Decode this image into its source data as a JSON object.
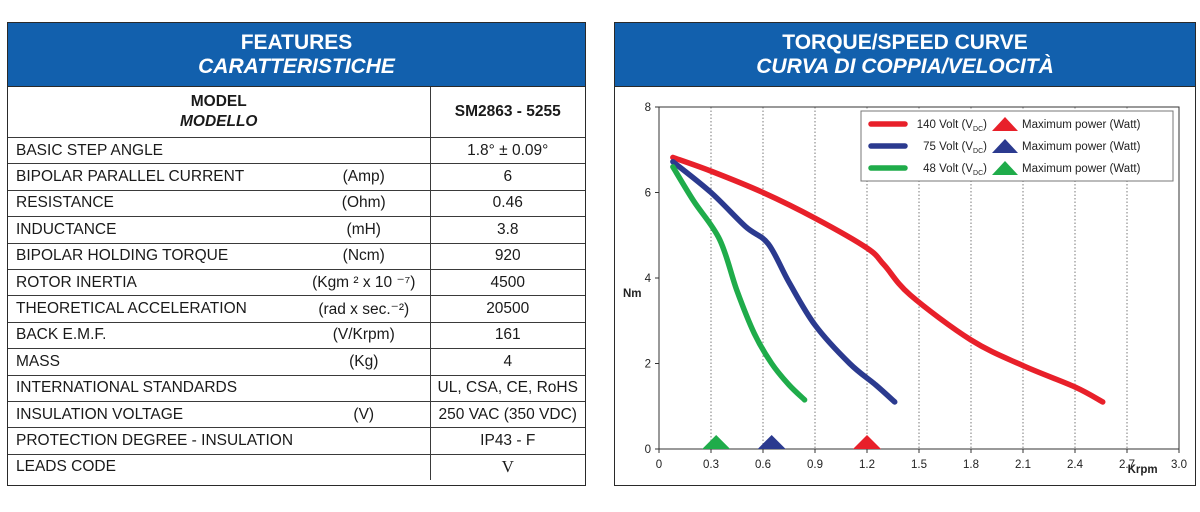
{
  "features": {
    "title": "FEATURES",
    "subtitle": "CARATTERISTICHE",
    "model_label": "MODEL",
    "model_label_it": "MODELLO",
    "model_value": "SM2863 - 5255",
    "rows": [
      {
        "label": "BASIC STEP ANGLE",
        "unit": "",
        "value": "1.8° ± 0.09°"
      },
      {
        "label": "BIPOLAR PARALLEL CURRENT",
        "unit": "(Amp)",
        "value": "6"
      },
      {
        "label": "RESISTANCE",
        "unit": "(Ohm)",
        "value": "0.46"
      },
      {
        "label": "INDUCTANCE",
        "unit": "(mH)",
        "value": "3.8"
      },
      {
        "label": "BIPOLAR HOLDING TORQUE",
        "unit": "(Ncm)",
        "value": "920"
      },
      {
        "label": "ROTOR INERTIA",
        "unit": "(Kgm ² x 10 ⁻⁷)",
        "value": "4500"
      },
      {
        "label": "THEORETICAL ACCELERATION",
        "unit": "(rad x sec.⁻²)",
        "value": "20500"
      },
      {
        "label": "BACK E.M.F.",
        "unit": "(V/Krpm)",
        "value": "161"
      },
      {
        "label": "MASS",
        "unit": "(Kg)",
        "value": "4"
      },
      {
        "label": "INTERNATIONAL STANDARDS",
        "unit": "",
        "value": "UL, CSA, CE, RoHS"
      },
      {
        "label": "INSULATION VOLTAGE",
        "unit": "(V)",
        "value": "250 VAC (350 VDC)"
      },
      {
        "label": "PROTECTION DEGREE - INSULATION CLASS",
        "unit": "",
        "value": "IP43 - F"
      },
      {
        "label": "LEADS CODE",
        "unit": "",
        "value": "V"
      }
    ]
  },
  "curve_panel": {
    "title": "TORQUE/SPEED CURVE",
    "subtitle": "CURVA DI COPPIA/VELOCITÀ"
  },
  "chart_data": {
    "type": "line",
    "title": "TORQUE/SPEED CURVE",
    "xlabel": "Krpm",
    "ylabel": "Nm",
    "xlim": [
      0,
      3.0
    ],
    "ylim": [
      0,
      8
    ],
    "x_ticks": [
      "0",
      "0.3",
      "0.6",
      "0.9",
      "1.2",
      "1.5",
      "1.8",
      "2.1",
      "2.4",
      "2.7",
      "3.0"
    ],
    "y_ticks": [
      "0",
      "2",
      "4",
      "6",
      "8"
    ],
    "grid": "vertical",
    "legend_position": "top-right",
    "legend_suffix": "Maximum power (Watt)",
    "legend_unit": "V",
    "legend_unit_sub": "DC",
    "series": [
      {
        "name": "140 Volt",
        "color": "#e8202a",
        "max_power_krpm": 1.2,
        "points": [
          [
            0.08,
            6.82
          ],
          [
            0.3,
            6.5
          ],
          [
            0.6,
            6.0
          ],
          [
            0.9,
            5.4
          ],
          [
            1.2,
            4.7
          ],
          [
            1.3,
            4.3
          ],
          [
            1.45,
            3.6
          ],
          [
            1.8,
            2.55
          ],
          [
            2.1,
            1.95
          ],
          [
            2.4,
            1.45
          ],
          [
            2.56,
            1.1
          ]
        ]
      },
      {
        "name": "75 Volt",
        "color": "#2b3a8f",
        "max_power_krpm": 0.65,
        "points": [
          [
            0.08,
            6.72
          ],
          [
            0.3,
            6.0
          ],
          [
            0.5,
            5.2
          ],
          [
            0.63,
            4.8
          ],
          [
            0.75,
            3.9
          ],
          [
            0.9,
            2.9
          ],
          [
            1.1,
            2.0
          ],
          [
            1.25,
            1.5
          ],
          [
            1.36,
            1.1
          ]
        ]
      },
      {
        "name": "48 Volt",
        "color": "#1fac4a",
        "max_power_krpm": 0.33,
        "points": [
          [
            0.08,
            6.6
          ],
          [
            0.2,
            5.8
          ],
          [
            0.35,
            4.9
          ],
          [
            0.45,
            3.7
          ],
          [
            0.55,
            2.7
          ],
          [
            0.65,
            2.0
          ],
          [
            0.75,
            1.5
          ],
          [
            0.84,
            1.15
          ]
        ]
      }
    ]
  }
}
